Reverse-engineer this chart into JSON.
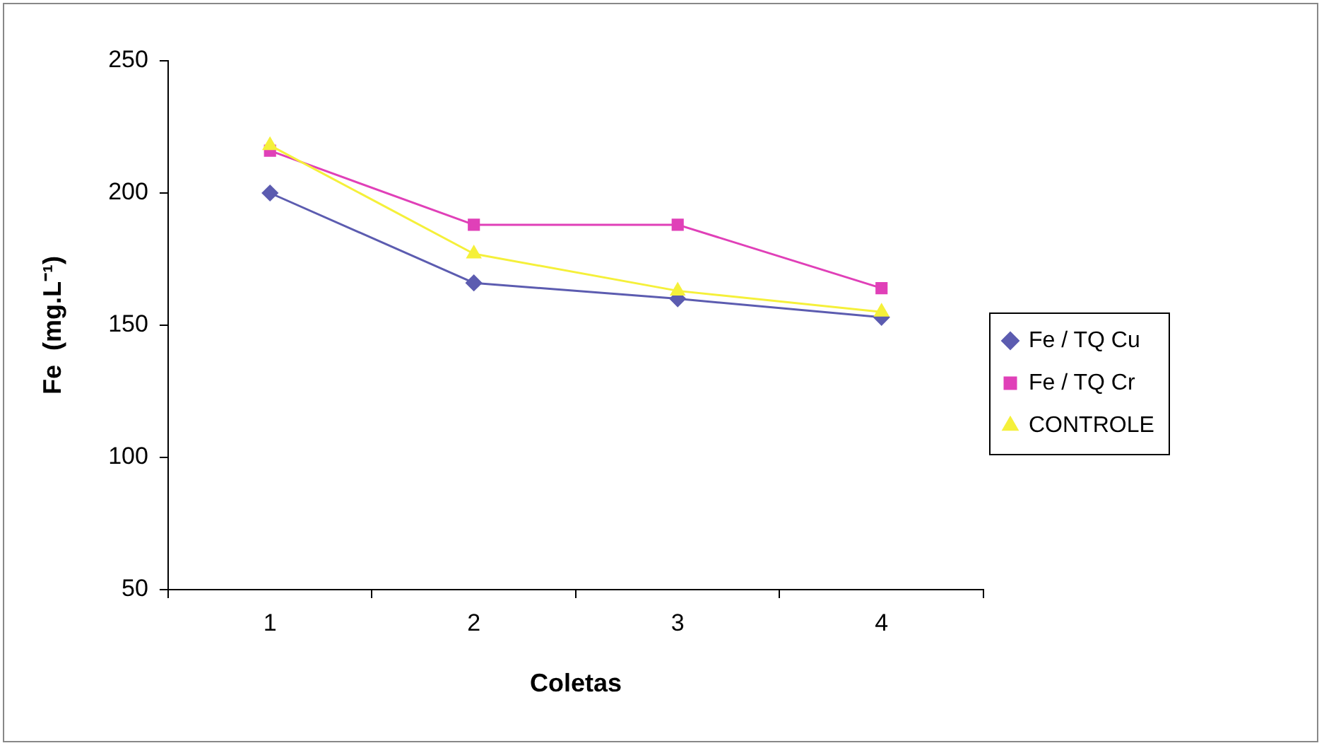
{
  "chart_data": {
    "type": "line",
    "xlabel": "Coletas",
    "ylabel": "Fe  (mg.L⁻¹)",
    "categories": [
      "1",
      "2",
      "3",
      "4"
    ],
    "series": [
      {
        "name": "Fe / TQ Cu",
        "color": "#5c5cb0",
        "marker": "diamond",
        "values": [
          200,
          166,
          160,
          153
        ]
      },
      {
        "name": "Fe / TQ Cr",
        "color": "#e040b8",
        "marker": "square",
        "values": [
          216,
          188,
          188,
          164
        ]
      },
      {
        "name": "CONTROLE",
        "color": "#f5f03a",
        "marker": "triangle",
        "values": [
          218,
          177,
          163,
          155
        ]
      }
    ],
    "ylim": [
      50,
      250
    ],
    "yticks": [
      50,
      100,
      150,
      200,
      250
    ],
    "grid": false,
    "legend": "right"
  }
}
